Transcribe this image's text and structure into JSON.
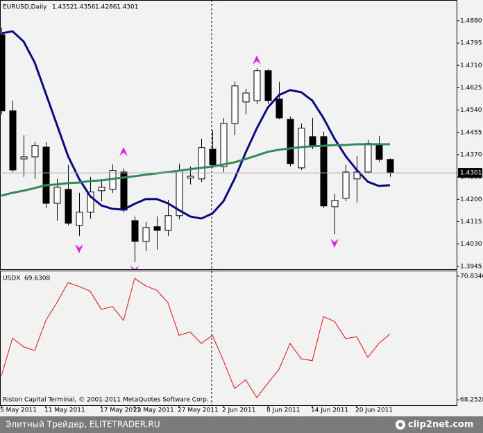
{
  "chart_data": [
    {
      "type": "candlestick",
      "title": "EURUSD,Daily",
      "open": [
        1.4827,
        1.4537,
        1.4354,
        1.4362,
        1.4399,
        1.4185,
        1.4238,
        1.4101,
        1.4151,
        1.4233,
        1.4238,
        1.4304,
        1.4119,
        1.404,
        1.4096,
        1.4082,
        1.4138,
        1.4281,
        1.4278,
        1.4391,
        1.4325,
        1.4489,
        1.4571,
        1.4576,
        1.469,
        1.4582,
        1.4505,
        1.432,
        1.4439,
        1.4439,
        1.4172,
        1.4204,
        1.4278,
        1.4304,
        1.441,
        1.4352
      ],
      "high": [
        1.4854,
        1.4576,
        1.4444,
        1.4418,
        1.4418,
        1.4278,
        1.4331,
        1.4225,
        1.4286,
        1.4278,
        1.4333,
        1.4318,
        1.4135,
        1.4114,
        1.4135,
        1.4199,
        1.4336,
        1.4325,
        1.4431,
        1.4463,
        1.451,
        1.4648,
        1.4621,
        1.47,
        1.4695,
        1.4648,
        1.4516,
        1.4489,
        1.451,
        1.4457,
        1.422,
        1.4331,
        1.4365,
        1.4426,
        1.4442,
        1.4356
      ],
      "low": [
        1.4523,
        1.4304,
        1.4286,
        1.4278,
        1.4167,
        1.4119,
        1.4101,
        1.4061,
        1.4127,
        1.4193,
        1.4225,
        1.4151,
        1.3961,
        1.4003,
        1.4009,
        1.4061,
        1.4125,
        1.4257,
        1.4267,
        1.432,
        1.4304,
        1.4444,
        1.4523,
        1.4563,
        1.4563,
        1.4505,
        1.4325,
        1.4312,
        1.4391,
        1.4167,
        1.4067,
        1.4193,
        1.4188,
        1.4299,
        1.4341,
        1.4286
      ],
      "close": [
        1.4537,
        1.4312,
        1.4362,
        1.4405,
        1.4185,
        1.4246,
        1.4109,
        1.4151,
        1.4228,
        1.4246,
        1.431,
        1.4159,
        1.404,
        1.4093,
        1.4082,
        1.4138,
        1.431,
        1.4288,
        1.4397,
        1.4331,
        1.4489,
        1.4632,
        1.4605,
        1.469,
        1.4576,
        1.451,
        1.4336,
        1.4471,
        1.4405,
        1.4175,
        1.4196,
        1.4304,
        1.4304,
        1.4413,
        1.4352,
        1.4301
      ],
      "up_color": "#ffffff",
      "down_color": "#000000",
      "lines": [
        {
          "color": "#0a0a80",
          "values": [
            1.4832,
            1.484,
            1.4801,
            1.4721,
            1.4603,
            1.4484,
            1.4365,
            1.4278,
            1.4212,
            1.4177,
            1.4164,
            1.4161,
            1.4183,
            1.4201,
            1.4201,
            1.4185,
            1.4159,
            1.4135,
            1.4127,
            1.4146,
            1.4193,
            1.4278,
            1.4378,
            1.447,
            1.455,
            1.4597,
            1.4616,
            1.4608,
            1.4576,
            1.451,
            1.4431,
            1.4365,
            1.4312,
            1.4267,
            1.4251,
            1.4254
          ]
        },
        {
          "color": "#2e8b57",
          "values": [
            1.4214,
            1.4225,
            1.4233,
            1.4243,
            1.4254,
            1.4257,
            1.4262,
            1.4264,
            1.427,
            1.4272,
            1.4278,
            1.4283,
            1.4288,
            1.4294,
            1.4299,
            1.4304,
            1.4309,
            1.4315,
            1.432,
            1.4325,
            1.4333,
            1.4341,
            1.4354,
            1.4367,
            1.4381,
            1.4389,
            1.4394,
            1.4399,
            1.4402,
            1.4404,
            1.4407,
            1.4407,
            1.441,
            1.441,
            1.441,
            1.441
          ]
        }
      ],
      "up_arrows": [
        null,
        null,
        null,
        null,
        null,
        null,
        null,
        null,
        null,
        null,
        null,
        1.4378,
        null,
        null,
        null,
        null,
        null,
        null,
        null,
        null,
        null,
        null,
        null,
        1.4727,
        null,
        null,
        null,
        null,
        null,
        null,
        null,
        null,
        null,
        null,
        null,
        null
      ],
      "down_arrows": [
        null,
        null,
        null,
        null,
        null,
        null,
        null,
        1.4016,
        null,
        null,
        null,
        null,
        1.3934,
        null,
        null,
        null,
        null,
        null,
        null,
        null,
        null,
        null,
        null,
        null,
        null,
        null,
        null,
        null,
        null,
        null,
        1.4037,
        null,
        null,
        null,
        null,
        null
      ],
      "arrow_color": "#e020e0",
      "ylim": [
        1.3934,
        1.4959
      ],
      "yticks": [
        {
          "value": 1.488,
          "label": "1.4880"
        },
        1.4795,
        {
          "value": 1.471,
          "label": "1.4710"
        },
        1.4625,
        {
          "value": 1.454,
          "label": "1.4540"
        },
        1.4455,
        {
          "value": 1.437,
          "label": "1.4370"
        },
        1.4285,
        {
          "value": 1.42,
          "label": "1.4200"
        },
        1.4115,
        {
          "value": 1.403,
          "label": "1.4030"
        },
        1.3945
      ],
      "xticks": [
        {
          "value": 0,
          "label": "5 May 2011"
        },
        {
          "value": 4,
          "label": "11 May 2011"
        },
        {
          "value": 9,
          "label": "17 May 2011"
        },
        {
          "value": 12,
          "label": "23 May 2011"
        },
        {
          "value": 16,
          "label": "27 May 2011"
        },
        {
          "value": 20,
          "label": "2 Jun 2011"
        },
        {
          "value": 24,
          "label": "8 Jun 2011"
        },
        {
          "value": 28,
          "label": "14 Jun 2011"
        },
        {
          "value": 32,
          "label": "20 Jun 2011"
        }
      ]
    },
    {
      "type": "line",
      "title": "USDX",
      "color": "#e01010",
      "values": [
        68.75,
        69.54,
        69.36,
        69.28,
        69.91,
        70.28,
        70.7,
        70.62,
        70.52,
        70.14,
        70.2,
        69.91,
        70.79,
        70.63,
        70.54,
        70.28,
        69.6,
        69.67,
        69.43,
        69.6,
        69.07,
        68.49,
        68.67,
        68.3,
        68.6,
        68.89,
        69.43,
        69.11,
        69.07,
        69.99,
        69.89,
        69.53,
        69.57,
        69.14,
        69.43,
        69.6308
      ],
      "ylim": [
        68.14,
        70.95
      ],
      "yticks": [
        70.8346,
        68.2528
      ],
      "caption": "Riston Capital Terminal, © 2001-2011 MetaQuotes Software Corp."
    }
  ],
  "footer": {
    "text": "Элитный Трейдер, ELITETRADER.RU",
    "logo": "clip2net.com"
  }
}
